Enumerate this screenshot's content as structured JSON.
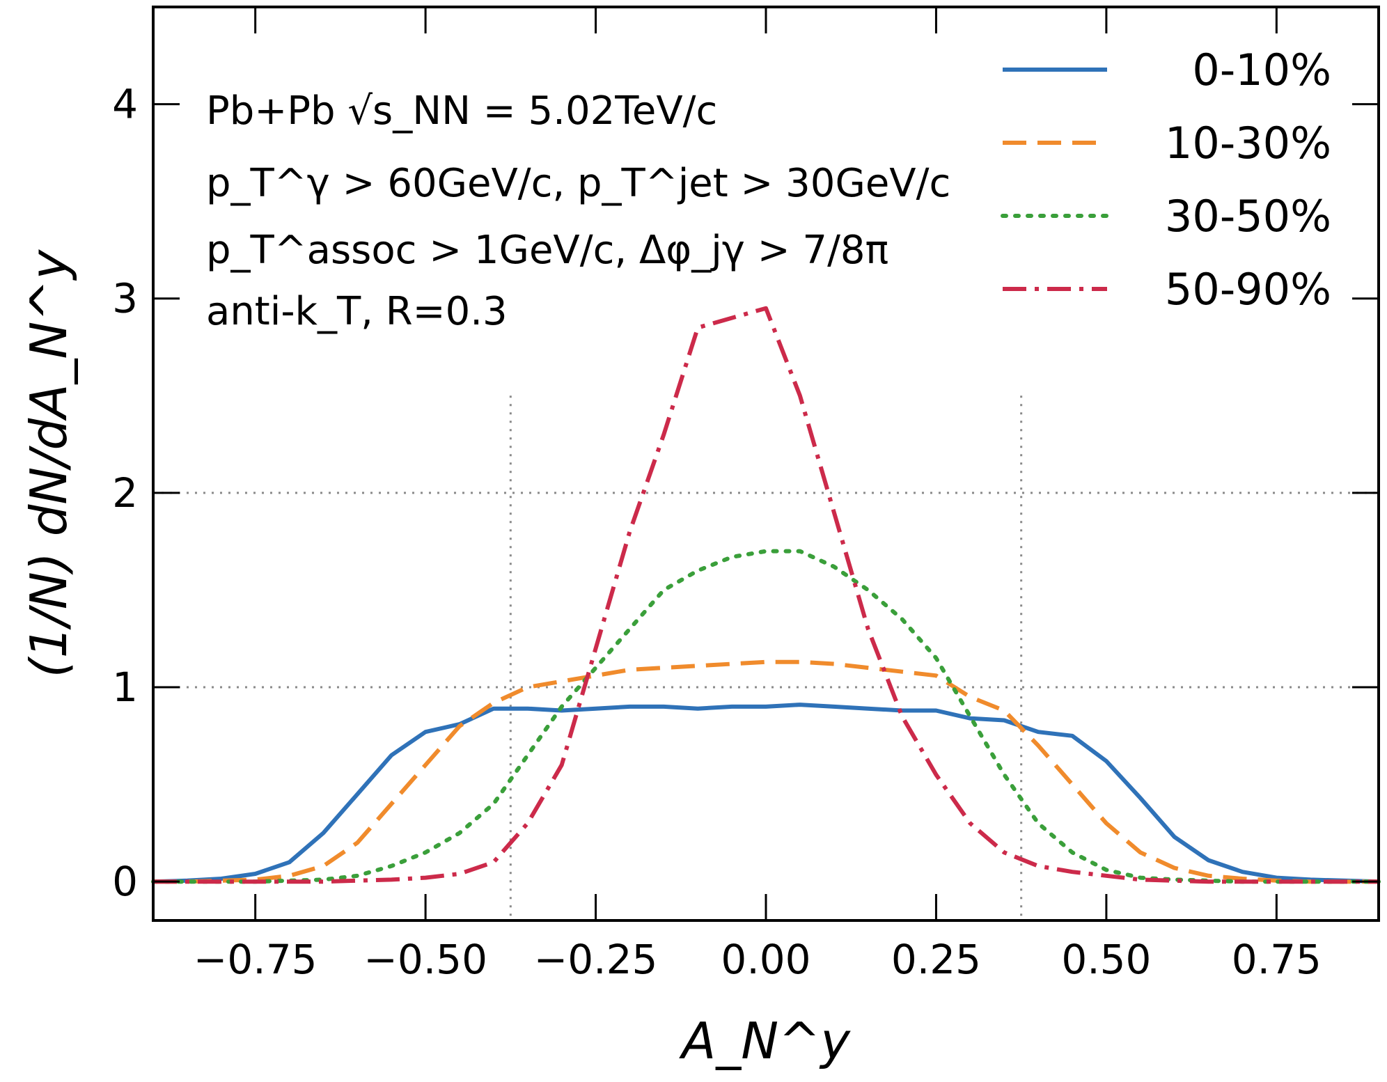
{
  "chart_data": {
    "type": "line",
    "xlabel": "A_N^y",
    "ylabel": "(1/N) dN/dA_N^y",
    "xlim": [
      -0.9,
      0.9
    ],
    "ylim": [
      -0.2,
      4.5
    ],
    "xticks": [
      "−0.75",
      "−0.50",
      "−0.25",
      "0.00",
      "0.25",
      "0.50",
      "0.75"
    ],
    "yticks": [
      "0",
      "1",
      "2",
      "3",
      "4"
    ],
    "grid": "dotted gray lines at y=1, y=2 and at x=±0.375",
    "legend_position": "top-right",
    "annotations": [
      "Pb+Pb √s_NN = 5.02TeV/c",
      "p_T^γ > 60GeV/c, p_T^jet > 30GeV/c",
      "p_T^assoc > 1GeV/c, Δφ_jγ > 7/8π",
      "anti-k_T, R=0.3"
    ],
    "series": [
      {
        "name": "0-10%",
        "color": "#2f72b8",
        "style": "solid",
        "x": [
          -0.9,
          -0.85,
          -0.8,
          -0.75,
          -0.7,
          -0.65,
          -0.6,
          -0.55,
          -0.5,
          -0.45,
          -0.4,
          -0.35,
          -0.3,
          -0.25,
          -0.2,
          -0.15,
          -0.1,
          -0.05,
          0.0,
          0.05,
          0.1,
          0.15,
          0.2,
          0.25,
          0.3,
          0.35,
          0.4,
          0.45,
          0.5,
          0.55,
          0.6,
          0.65,
          0.7,
          0.75,
          0.8,
          0.85,
          0.9
        ],
        "y": [
          0.0,
          0.005,
          0.015,
          0.04,
          0.1,
          0.25,
          0.45,
          0.65,
          0.77,
          0.81,
          0.89,
          0.89,
          0.88,
          0.89,
          0.9,
          0.9,
          0.89,
          0.9,
          0.9,
          0.91,
          0.9,
          0.89,
          0.88,
          0.88,
          0.84,
          0.83,
          0.77,
          0.75,
          0.62,
          0.43,
          0.23,
          0.11,
          0.05,
          0.02,
          0.01,
          0.005,
          0.0
        ]
      },
      {
        "name": "10-30%",
        "color": "#f08b2c",
        "style": "dashed",
        "x": [
          -0.9,
          -0.85,
          -0.8,
          -0.75,
          -0.7,
          -0.65,
          -0.6,
          -0.55,
          -0.5,
          -0.45,
          -0.4,
          -0.35,
          -0.3,
          -0.25,
          -0.2,
          -0.15,
          -0.1,
          -0.05,
          0.0,
          0.05,
          0.1,
          0.15,
          0.2,
          0.25,
          0.3,
          0.35,
          0.4,
          0.45,
          0.5,
          0.55,
          0.6,
          0.65,
          0.7,
          0.75,
          0.8,
          0.85,
          0.9
        ],
        "y": [
          0.0,
          0.0,
          0.005,
          0.01,
          0.03,
          0.08,
          0.2,
          0.4,
          0.6,
          0.8,
          0.92,
          1.0,
          1.03,
          1.06,
          1.09,
          1.1,
          1.11,
          1.12,
          1.13,
          1.13,
          1.12,
          1.1,
          1.08,
          1.06,
          0.95,
          0.88,
          0.7,
          0.5,
          0.3,
          0.15,
          0.07,
          0.03,
          0.015,
          0.005,
          0.0,
          0.0,
          0.0
        ]
      },
      {
        "name": "30-50%",
        "color": "#3a9f3a",
        "style": "dotted",
        "x": [
          -0.9,
          -0.85,
          -0.8,
          -0.75,
          -0.7,
          -0.65,
          -0.6,
          -0.55,
          -0.5,
          -0.45,
          -0.4,
          -0.35,
          -0.3,
          -0.25,
          -0.2,
          -0.15,
          -0.1,
          -0.05,
          0.0,
          0.05,
          0.1,
          0.15,
          0.2,
          0.25,
          0.3,
          0.35,
          0.4,
          0.45,
          0.5,
          0.55,
          0.6,
          0.65,
          0.7,
          0.75,
          0.8,
          0.85,
          0.9
        ],
        "y": [
          0.0,
          0.0,
          0.0,
          0.0,
          0.005,
          0.01,
          0.03,
          0.08,
          0.15,
          0.25,
          0.4,
          0.65,
          0.9,
          1.1,
          1.3,
          1.5,
          1.6,
          1.67,
          1.7,
          1.7,
          1.62,
          1.5,
          1.35,
          1.15,
          0.85,
          0.55,
          0.3,
          0.15,
          0.06,
          0.02,
          0.01,
          0.005,
          0.0,
          0.0,
          0.0,
          0.0,
          0.0
        ]
      },
      {
        "name": "50-90%",
        "color": "#cc2a4a",
        "style": "dashdot",
        "x": [
          -0.9,
          -0.85,
          -0.8,
          -0.75,
          -0.7,
          -0.65,
          -0.6,
          -0.55,
          -0.5,
          -0.45,
          -0.4,
          -0.35,
          -0.3,
          -0.25,
          -0.2,
          -0.15,
          -0.1,
          -0.05,
          0.0,
          0.05,
          0.1,
          0.15,
          0.2,
          0.25,
          0.3,
          0.35,
          0.4,
          0.45,
          0.5,
          0.55,
          0.6,
          0.65,
          0.7,
          0.75,
          0.8,
          0.85,
          0.9
        ],
        "y": [
          0.0,
          0.0,
          0.0,
          0.0,
          0.0,
          0.0,
          0.005,
          0.01,
          0.02,
          0.04,
          0.1,
          0.3,
          0.6,
          1.2,
          1.8,
          2.3,
          2.85,
          2.9,
          2.95,
          2.5,
          1.9,
          1.3,
          0.85,
          0.55,
          0.3,
          0.15,
          0.08,
          0.05,
          0.03,
          0.01,
          0.005,
          0.0,
          0.0,
          0.0,
          0.0,
          0.0,
          0.0
        ]
      }
    ]
  }
}
